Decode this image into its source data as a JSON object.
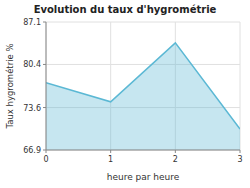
{
  "chart_data": {
    "type": "area",
    "title": "Evolution du taux d'hygrométrie",
    "xlabel": "heure par heure",
    "ylabel": "Taux hygrométrie %",
    "x": [
      0,
      1,
      2,
      3
    ],
    "values": [
      77.5,
      74.5,
      83.8,
      70.2
    ],
    "color": "#5bb8d4",
    "xlim": [
      0,
      3
    ],
    "ylim": [
      66.9,
      87.1
    ],
    "xticks": [
      0,
      1,
      2,
      3
    ],
    "yticks": [
      66.9,
      73.6,
      80.4,
      87.1
    ],
    "grid": true
  }
}
